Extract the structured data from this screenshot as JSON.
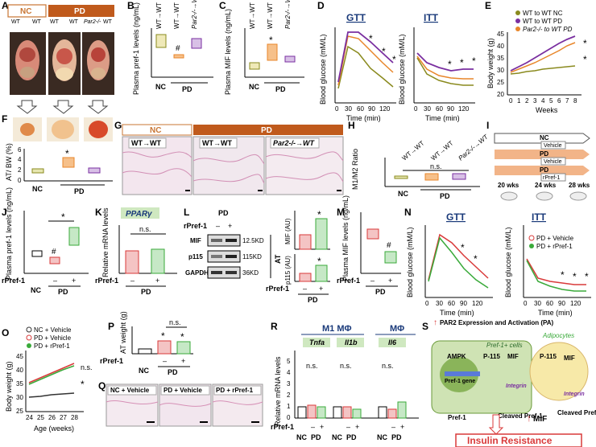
{
  "panel_letters": [
    "A",
    "B",
    "C",
    "D",
    "E",
    "F",
    "G",
    "H",
    "I",
    "J",
    "K",
    "L",
    "M",
    "N",
    "O",
    "P",
    "Q",
    "R",
    "S"
  ],
  "colors": {
    "nc": "#c87533",
    "pd": "#b85a1a",
    "wt_nc": "#8a8a1e",
    "wt_pd": "#7a2fa0",
    "par2": "#e8862a",
    "gtt_wt": "#7a2fa0",
    "mif": "#f0a030",
    "cell_green": "#cfe3b4",
    "adipo": "#f7e9a8",
    "red": "#d93a3a",
    "green": "#3aaa3a",
    "lightgreen": "#c6e8c6"
  },
  "A": {
    "nc": "NC",
    "pd": "PD",
    "wt1": "WT",
    "arrow1": "→",
    "wt2": "WT",
    "wt3": "WT",
    "wt4": "WT",
    "par2": "Par2-/-",
    "wt5": "WT"
  },
  "B": {
    "ylabel": "Plasma pref-1 levels (ng/mL)",
    "groups": [
      "WT→WT",
      "WT→WT",
      "Par2-/-→WT"
    ],
    "nc": "NC",
    "pd": "PD",
    "hash": "#"
  },
  "C": {
    "ylabel": "Plasma MIF levels (ng/mL)",
    "groups": [
      "WT→WT",
      "WT→WT",
      "Par2-/-→WT"
    ],
    "nc": "NC",
    "pd": "PD",
    "star": "*"
  },
  "D": {
    "gtt": "GTT",
    "itt": "ITT",
    "ylabel": "Blood glucose (mM/L)",
    "xlabel": "Time (min)",
    "ticks": [
      "0",
      "30",
      "60",
      "90",
      "120"
    ],
    "star": "*"
  },
  "E": {
    "ylabel": "Body weight (g)",
    "xlabel": "Weeks",
    "legend": [
      "WT to WT NC",
      "WT to WT PD",
      "Par2-/- to WT PD"
    ],
    "ticks": [
      "0",
      "1",
      "2",
      "3",
      "4",
      "5",
      "6",
      "7",
      "8"
    ],
    "yticks": [
      "20",
      "25",
      "30",
      "35",
      "40",
      "45"
    ],
    "star": "*"
  },
  "F": {
    "ylabel": "AT/ BW (%)",
    "nc": "NC",
    "pd": "PD",
    "star": "*",
    "yticks": [
      "0",
      "2",
      "4",
      "6"
    ]
  },
  "G": {
    "nc": "NC",
    "pd": "PD",
    "t1": "WT→WT",
    "t2": "WT→WT",
    "t3": "Par2-/-→WT"
  },
  "H": {
    "ylabel": "M1/M2 Ratio",
    "groups": [
      "WT→WT",
      "WT→WT",
      "Par2-/-→WT"
    ],
    "ns": "n.s.",
    "nc": "NC",
    "pd": "PD"
  },
  "I": {
    "nc": "NC",
    "vehicle1": "Vehicle",
    "pd1": "PD",
    "vehicle2": "Vehicle",
    "pd2": "PD",
    "rpref": "rPref-1",
    "w20": "20 wks",
    "w24": "24 wks",
    "w28": "28 wks"
  },
  "J": {
    "ylabel": "Plasma pref-1 levels (ng/mL)",
    "rpref": "rPref-1",
    "minus": "–",
    "plus": "+",
    "nc": "NC",
    "pd": "PD",
    "hash": "#",
    "star": "*"
  },
  "K": {
    "gene": "PPARγ",
    "ylabel": "Relative mRNA levels",
    "ns": "n.s.",
    "rpref": "rPref-1",
    "minus": "–",
    "plus": "+",
    "pd": "PD"
  },
  "L": {
    "pd": "PD",
    "rpref": "rPref-1",
    "minus": "–",
    "plus": "+",
    "rows": [
      "MIF",
      "p115",
      "GAPDH"
    ],
    "kd": [
      "12.5KD",
      "115KD",
      "36KD"
    ],
    "at": "AT",
    "mif_y": "MIF (AU)",
    "p115_y": "p115 (AU)",
    "star": "*"
  },
  "M": {
    "ylabel": "Plasma MIF levels (ng/mL)",
    "rpref": "rPref-1",
    "minus": "–",
    "plus": "+",
    "pd": "PD",
    "hash": "#"
  },
  "N": {
    "gtt": "GTT",
    "itt": "ITT",
    "ylabel": "Blood glucose (mM/L)",
    "xlabel": "Time (min)",
    "legend": [
      "PD + Vehicle",
      "PD + rPref-1"
    ],
    "ticks": [
      "0",
      "30",
      "60",
      "90",
      "120"
    ],
    "star": "*"
  },
  "O": {
    "ylabel": "Body weight (g)",
    "xlabel": "Age (weeks)",
    "legend": [
      "NC + Vehicle",
      "PD + Vehicle",
      "PD + rPref-1"
    ],
    "ticks": [
      "24",
      "25",
      "26",
      "27",
      "28"
    ],
    "yticks": [
      "25",
      "30",
      "35",
      "40",
      "45"
    ],
    "ns": "n.s.",
    "star": "*"
  },
  "P": {
    "ylabel": "AT weight (g)",
    "ns": "n.s.",
    "rpref": "rPref-1",
    "minus": "–",
    "plus": "+",
    "nc": "NC",
    "pd": "PD",
    "star": "*",
    "yticks": [
      "0",
      "1",
      "2",
      "3"
    ]
  },
  "Q": {
    "t1": "NC + Vehicle",
    "t2": "PD + Vehicle",
    "t3": "PD + rPref-1"
  },
  "R": {
    "m1": "M1 MΦ",
    "m0": "MΦ",
    "genes": [
      "Tnfa",
      "Il1b",
      "Il6"
    ],
    "ns": "n.s.",
    "ylabel": "Relative mRNA levels",
    "rpref": "rPref-1",
    "minus": "–",
    "plus": "+",
    "nc": "NC",
    "pd": "PD",
    "yticks": [
      "0",
      "1",
      "2",
      "3",
      "4",
      "5"
    ]
  },
  "S": {
    "header": "PAR2 Expression and Activation (PA)",
    "pref_cells": "Pref-1+ cells",
    "adipocytes": "Adipocytes",
    "ampk": "AMPK",
    "p115": "P-115",
    "mif": "MIF",
    "pref_gene": "Pref-1 gene",
    "integrin": "Integrin",
    "pref1": "Pref-1",
    "cleaved": "Cleaved Pref-1",
    "mif_up": "MIF",
    "ir": "Insulin Resistance"
  }
}
